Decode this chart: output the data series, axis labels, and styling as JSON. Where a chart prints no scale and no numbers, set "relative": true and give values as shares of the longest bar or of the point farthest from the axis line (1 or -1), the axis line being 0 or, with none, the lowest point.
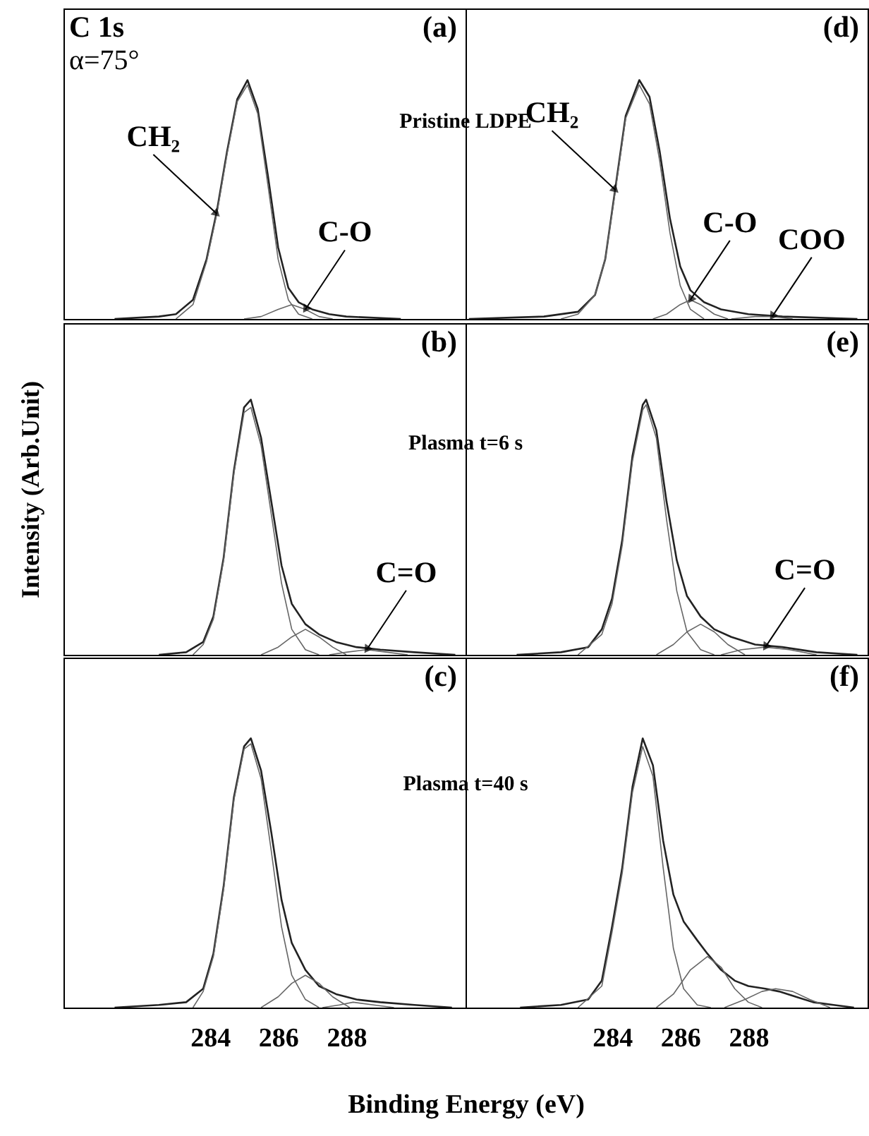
{
  "chart_data": [
    {
      "type": "line",
      "relative": true,
      "xlim": [
        279.7,
        291.5
      ],
      "xticks": [
        284,
        286,
        288
      ],
      "tick_labels": false,
      "annotations": [
        "(a)",
        "C 1s",
        "α=75°",
        {
          "text": "CH₂",
          "x": 284.2,
          "y": 0.44
        },
        {
          "text": "C-O",
          "x": 286.8,
          "y": 0.04
        }
      ],
      "series": [
        {
          "color": "#222222",
          "x": [
            281.2,
            282.5,
            283.0,
            283.5,
            283.9,
            284.2,
            284.5,
            284.8,
            285.1,
            285.4,
            285.7,
            286.0,
            286.3,
            286.6,
            287.0,
            287.5,
            288.0,
            289.6
          ],
          "values": [
            0,
            0.01,
            0.02,
            0.08,
            0.25,
            0.45,
            0.7,
            0.92,
            1.0,
            0.88,
            0.6,
            0.3,
            0.13,
            0.07,
            0.04,
            0.02,
            0.01,
            0
          ]
        },
        {
          "color": "#666666",
          "x": [
            283.0,
            283.5,
            283.9,
            284.2,
            284.5,
            284.8,
            285.1,
            285.4,
            285.7,
            286.0,
            286.3,
            286.6,
            287.0
          ],
          "values": [
            0,
            0.06,
            0.24,
            0.44,
            0.69,
            0.91,
            0.98,
            0.86,
            0.56,
            0.25,
            0.08,
            0.02,
            0
          ]
        },
        {
          "color": "#666666",
          "x": [
            285.0,
            285.5,
            286.0,
            286.4,
            286.8,
            287.2,
            287.6
          ],
          "values": [
            0,
            0.01,
            0.04,
            0.06,
            0.04,
            0.01,
            0
          ]
        }
      ]
    },
    {
      "type": "line",
      "relative": true,
      "xlim": [
        279.7,
        291.5
      ],
      "xticks": [
        284,
        286,
        288
      ],
      "tick_labels": false,
      "annotations": [
        "(d)",
        "Pristine LDPE",
        {
          "text": "CH₂",
          "x": 284.1,
          "y": 0.54
        },
        {
          "text": "C-O",
          "x": 286.3,
          "y": 0.08
        },
        {
          "text": "COO",
          "x": 288.7,
          "y": 0.01
        }
      ],
      "series": [
        {
          "color": "#222222",
          "x": [
            279.8,
            282.0,
            283.0,
            283.5,
            283.8,
            284.1,
            284.4,
            284.8,
            285.1,
            285.4,
            285.7,
            286.0,
            286.3,
            286.7,
            287.2,
            288.0,
            289.0,
            291.2
          ],
          "values": [
            0,
            0.01,
            0.03,
            0.1,
            0.25,
            0.55,
            0.85,
            1.0,
            0.93,
            0.7,
            0.42,
            0.22,
            0.12,
            0.07,
            0.04,
            0.02,
            0.01,
            0
          ]
        },
        {
          "color": "#666666",
          "x": [
            282.5,
            283.0,
            283.5,
            283.8,
            284.1,
            284.4,
            284.8,
            285.1,
            285.4,
            285.7,
            286.0,
            286.3,
            286.7
          ],
          "values": [
            0,
            0.02,
            0.1,
            0.25,
            0.54,
            0.84,
            0.98,
            0.9,
            0.66,
            0.36,
            0.14,
            0.04,
            0
          ]
        },
        {
          "color": "#666666",
          "x": [
            285.2,
            285.6,
            286.0,
            286.3,
            286.6,
            287.0,
            287.4
          ],
          "values": [
            0,
            0.02,
            0.06,
            0.08,
            0.06,
            0.02,
            0
          ]
        },
        {
          "color": "#666666",
          "x": [
            287.5,
            288.2,
            288.7,
            289.3
          ],
          "values": [
            0,
            0.01,
            0.01,
            0
          ]
        }
      ]
    },
    {
      "type": "line",
      "relative": true,
      "xlim": [
        279.7,
        291.5
      ],
      "xticks": [
        284,
        286,
        288
      ],
      "tick_labels": false,
      "ylabel": "Intensity (Arb.Unit)",
      "annotations": [
        "(b)",
        {
          "text": "C=O",
          "x": 288.6,
          "y": 0.02
        }
      ],
      "series": [
        {
          "color": "#222222",
          "x": [
            282.5,
            283.3,
            283.8,
            284.1,
            284.4,
            284.7,
            285.0,
            285.2,
            285.5,
            285.8,
            286.1,
            286.4,
            286.8,
            287.2,
            287.7,
            288.3,
            289.0,
            290.0,
            291.2
          ],
          "values": [
            0,
            0.01,
            0.05,
            0.15,
            0.38,
            0.72,
            0.97,
            1.0,
            0.85,
            0.6,
            0.35,
            0.2,
            0.12,
            0.08,
            0.05,
            0.03,
            0.02,
            0.01,
            0
          ]
        },
        {
          "color": "#666666",
          "x": [
            283.5,
            283.8,
            284.1,
            284.4,
            284.7,
            285.0,
            285.2,
            285.5,
            285.8,
            286.1,
            286.4,
            286.8,
            287.2
          ],
          "values": [
            0,
            0.04,
            0.14,
            0.37,
            0.71,
            0.95,
            0.97,
            0.82,
            0.55,
            0.28,
            0.1,
            0.02,
            0
          ]
        },
        {
          "color": "#666666",
          "x": [
            285.5,
            286.0,
            286.4,
            286.8,
            287.2,
            287.6,
            288.0
          ],
          "values": [
            0,
            0.03,
            0.07,
            0.1,
            0.07,
            0.03,
            0
          ]
        },
        {
          "color": "#666666",
          "x": [
            287.5,
            288.0,
            288.6,
            289.2,
            289.8
          ],
          "values": [
            0,
            0.01,
            0.02,
            0.01,
            0
          ]
        }
      ]
    },
    {
      "type": "line",
      "relative": true,
      "xlim": [
        279.7,
        291.5
      ],
      "xticks": [
        284,
        286,
        288
      ],
      "tick_labels": false,
      "annotations": [
        "(e)",
        "Plasma t=6 s",
        {
          "text": "C=O",
          "x": 288.5,
          "y": 0.03
        }
      ],
      "series": [
        {
          "color": "#222222",
          "x": [
            281.2,
            282.5,
            283.3,
            283.7,
            284.0,
            284.3,
            284.6,
            284.9,
            285.0,
            285.3,
            285.6,
            285.9,
            286.2,
            286.6,
            287.0,
            287.5,
            288.2,
            289.0,
            290.0,
            291.2
          ],
          "values": [
            0,
            0.01,
            0.03,
            0.1,
            0.22,
            0.45,
            0.78,
            0.98,
            1.0,
            0.88,
            0.6,
            0.37,
            0.23,
            0.15,
            0.1,
            0.07,
            0.04,
            0.03,
            0.01,
            0
          ]
        },
        {
          "color": "#666666",
          "x": [
            283.0,
            283.7,
            284.0,
            284.3,
            284.6,
            284.9,
            285.0,
            285.3,
            285.6,
            285.9,
            286.2,
            286.6,
            287.0
          ],
          "values": [
            0,
            0.08,
            0.2,
            0.43,
            0.76,
            0.96,
            0.98,
            0.85,
            0.53,
            0.25,
            0.09,
            0.02,
            0
          ]
        },
        {
          "color": "#666666",
          "x": [
            285.3,
            285.8,
            286.2,
            286.6,
            287.0,
            287.4,
            287.9
          ],
          "values": [
            0,
            0.04,
            0.09,
            0.12,
            0.09,
            0.04,
            0
          ]
        },
        {
          "color": "#666666",
          "x": [
            287.2,
            287.8,
            288.5,
            289.2,
            290.0
          ],
          "values": [
            0,
            0.02,
            0.03,
            0.02,
            0
          ]
        }
      ]
    },
    {
      "type": "line",
      "relative": true,
      "xlim": [
        279.7,
        291.5
      ],
      "xticks": [
        284,
        286,
        288
      ],
      "tick_labels": "x",
      "xlabel": "Binding Energy (eV)",
      "annotations": [
        "(c)"
      ],
      "series": [
        {
          "color": "#222222",
          "x": [
            281.2,
            282.5,
            283.3,
            283.8,
            284.1,
            284.4,
            284.7,
            285.0,
            285.2,
            285.5,
            285.8,
            286.1,
            286.4,
            286.8,
            287.2,
            287.7,
            288.3,
            289.0,
            290.0,
            291.1
          ],
          "values": [
            0,
            0.01,
            0.02,
            0.07,
            0.2,
            0.45,
            0.78,
            0.97,
            1.0,
            0.88,
            0.65,
            0.4,
            0.24,
            0.14,
            0.08,
            0.05,
            0.03,
            0.02,
            0.01,
            0
          ]
        },
        {
          "color": "#666666",
          "x": [
            283.5,
            283.8,
            284.1,
            284.4,
            284.7,
            285.0,
            285.2,
            285.5,
            285.8,
            286.1,
            286.4,
            286.8,
            287.2
          ],
          "values": [
            0,
            0.06,
            0.19,
            0.44,
            0.77,
            0.96,
            0.98,
            0.85,
            0.58,
            0.3,
            0.12,
            0.03,
            0
          ]
        },
        {
          "color": "#666666",
          "x": [
            285.5,
            286.0,
            286.4,
            286.8,
            287.2,
            287.6,
            288.1
          ],
          "values": [
            0,
            0.04,
            0.09,
            0.12,
            0.09,
            0.04,
            0
          ]
        },
        {
          "color": "#666666",
          "x": [
            287.3,
            287.8,
            288.2,
            288.8,
            289.4
          ],
          "values": [
            0,
            0.01,
            0.02,
            0.01,
            0
          ]
        }
      ]
    },
    {
      "type": "line",
      "relative": true,
      "xlim": [
        279.7,
        291.5
      ],
      "xticks": [
        284,
        286,
        288
      ],
      "tick_labels": "x",
      "annotations": [
        "(f)",
        "Plasma t=40 s"
      ],
      "series": [
        {
          "color": "#222222",
          "x": [
            281.3,
            282.5,
            283.3,
            283.7,
            284.0,
            284.3,
            284.6,
            284.9,
            285.2,
            285.5,
            285.8,
            286.1,
            286.5,
            286.8,
            287.2,
            287.6,
            288.0,
            288.5,
            288.9,
            289.4,
            289.9,
            290.5,
            291.1
          ],
          "values": [
            0,
            0.01,
            0.03,
            0.1,
            0.3,
            0.52,
            0.82,
            1.0,
            0.9,
            0.62,
            0.42,
            0.32,
            0.25,
            0.2,
            0.14,
            0.1,
            0.08,
            0.07,
            0.06,
            0.04,
            0.02,
            0.01,
            0
          ]
        },
        {
          "color": "#666666",
          "x": [
            283.0,
            283.7,
            284.0,
            284.3,
            284.6,
            284.9,
            285.2,
            285.5,
            285.8,
            286.1,
            286.5,
            286.9
          ],
          "values": [
            0,
            0.08,
            0.28,
            0.5,
            0.8,
            0.97,
            0.86,
            0.52,
            0.22,
            0.07,
            0.01,
            0
          ]
        },
        {
          "color": "#666666",
          "x": [
            285.3,
            285.8,
            286.3,
            286.8,
            287.2,
            287.6,
            288.0,
            288.4
          ],
          "values": [
            0,
            0.05,
            0.14,
            0.19,
            0.15,
            0.07,
            0.02,
            0
          ]
        },
        {
          "color": "#666666",
          "x": [
            287.3,
            287.9,
            288.4,
            288.8,
            289.3,
            289.8,
            290.4
          ],
          "values": [
            0,
            0.03,
            0.06,
            0.07,
            0.06,
            0.03,
            0
          ]
        }
      ]
    }
  ]
}
